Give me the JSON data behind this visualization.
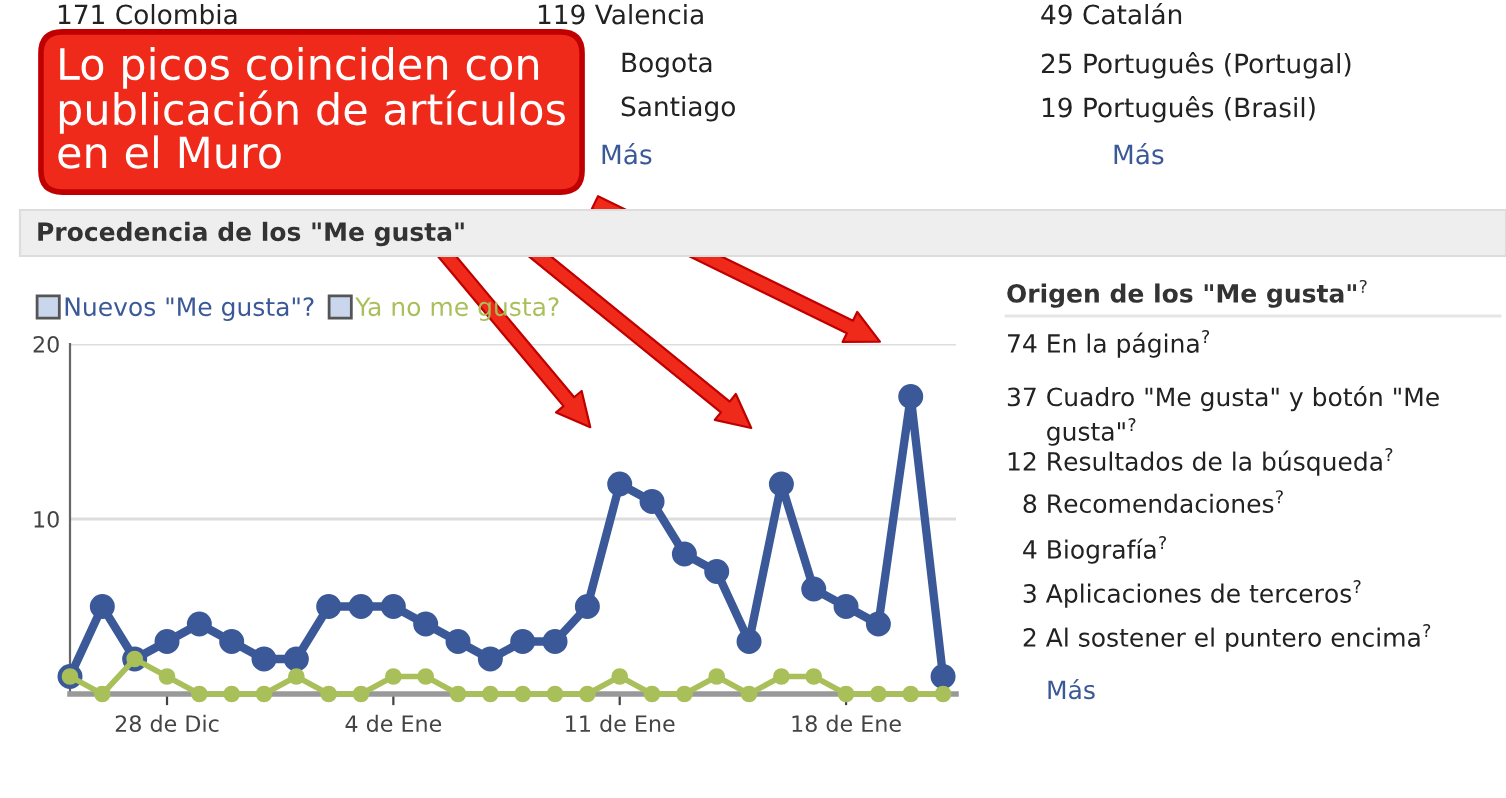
{
  "chart_data": [
    {
      "type": "other",
      "annotations": [
        "171 Colombia",
        "119 Valencia",
        "Bogota",
        "Santiago",
        "Más",
        "49 Catalán",
        "25 Português (Portugal)",
        "19 Português (Brasil)",
        "Más"
      ]
    },
    {
      "type": "line",
      "title": "Procedencia de los \"Me gusta\"",
      "categories": [
        null,
        null,
        null,
        "28 de Dic",
        null,
        null,
        null,
        null,
        null,
        null,
        "4 de Ene",
        null,
        null,
        null,
        null,
        null,
        null,
        "11 de Ene",
        null,
        null,
        null,
        null,
        null,
        null,
        "18 de Ene",
        null,
        null,
        null
      ],
      "series": [
        {
          "name": "Nuevos \"Me gusta\"?",
          "color": "#3b5998",
          "values": [
            1,
            5,
            2,
            3,
            4,
            3,
            2,
            2,
            5,
            5,
            5,
            4,
            3,
            2,
            3,
            3,
            5,
            12,
            11,
            8,
            7,
            3,
            12,
            6,
            5,
            4,
            17,
            1
          ]
        },
        {
          "name": "Ya no me gusta?",
          "color": "#a9c05a",
          "values": [
            1,
            0,
            2,
            1,
            0,
            0,
            0,
            1,
            0,
            0,
            1,
            1,
            0,
            0,
            0,
            0,
            0,
            1,
            0,
            0,
            1,
            0,
            1,
            1,
            0,
            0,
            0,
            0
          ]
        }
      ],
      "ylim": [
        0,
        20
      ],
      "yticks": [
        10,
        20
      ],
      "grid": "y",
      "legend": "top left",
      "marker": "circle",
      "line_style": "solid",
      "annotations": [
        "Lo picos coinciden con\npublicación de artículos\nen el Muro"
      ]
    },
    {
      "type": "other",
      "title": "Origen de los \"Me gusta\"$^{?}$",
      "annotations": [
        "74 En la página$^{?}$",
        "37 Cuadro \"Me gusta\" y botón \"Me\n     gusta\"$^{?}$",
        "12 Resultados de la búsqueda$^{?}$",
        "  8 Recomendaciones$^{?}$",
        "  4 Biografía$^{?}$",
        "  3 Aplicaciones de terceros$^{?}$",
        "  2 Al sostener el puntero encima$^{?}$",
        "Más"
      ]
    }
  ]
}
